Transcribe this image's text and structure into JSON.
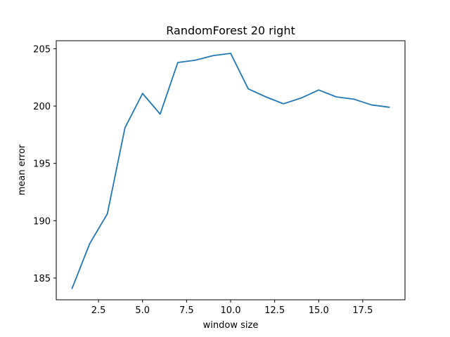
{
  "chart_data": {
    "type": "line",
    "title": "RandomForest 20 right",
    "xlabel": "window size",
    "ylabel": "mean error",
    "xlim": [
      0.1,
      19.9
    ],
    "ylim": [
      183.1,
      205.7
    ],
    "xticks": [
      2.5,
      5.0,
      7.5,
      10.0,
      12.5,
      15.0,
      17.5
    ],
    "xtick_labels": [
      "2.5",
      "5.0",
      "7.5",
      "10.0",
      "12.5",
      "15.0",
      "17.5"
    ],
    "yticks": [
      185,
      190,
      195,
      200,
      205
    ],
    "ytick_labels": [
      "185",
      "190",
      "195",
      "200",
      "205"
    ],
    "grid": false,
    "legend": "none",
    "series": [
      {
        "color": "#1f77b4",
        "x": [
          1,
          2,
          3,
          4,
          5,
          6,
          7,
          8,
          9,
          10,
          11,
          12,
          13,
          14,
          15,
          16,
          17,
          18,
          19
        ],
        "y": [
          184.1,
          188.0,
          190.6,
          198.1,
          201.1,
          199.3,
          203.8,
          204.0,
          204.4,
          204.6,
          201.5,
          200.8,
          200.2,
          200.7,
          201.4,
          200.8,
          200.6,
          200.1,
          199.9
        ]
      }
    ]
  }
}
